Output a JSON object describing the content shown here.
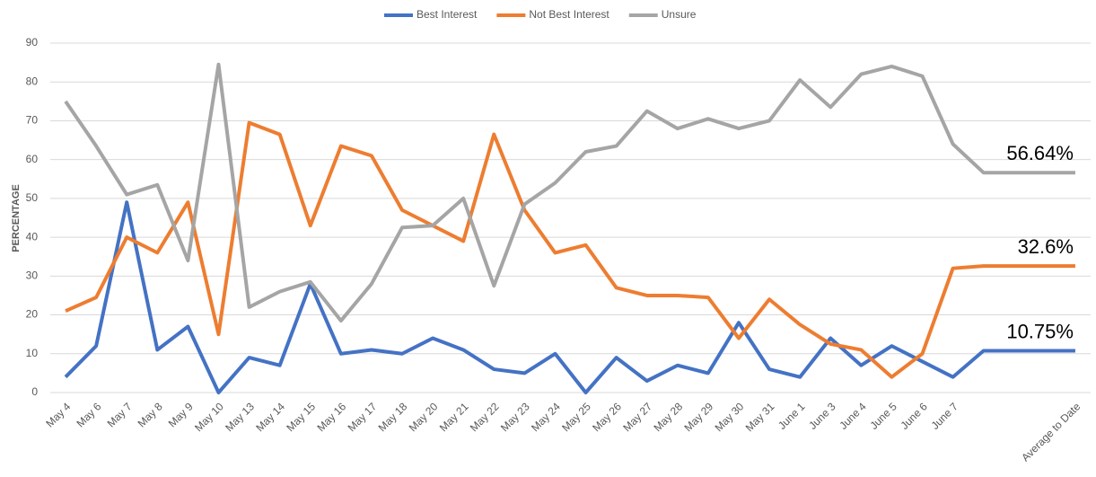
{
  "chart_data": {
    "type": "line",
    "y_label": "PERCENTAGE",
    "categories": [
      "May 4",
      "May 6",
      "May 7",
      "May 8",
      "May 9",
      "May 10",
      "May 13",
      "May 14",
      "May 15",
      "May 16",
      "May 17",
      "May 18",
      "May 20",
      "May 21",
      "May 22",
      "May 23",
      "May 24",
      "May 25",
      "May 26",
      "May 27",
      "May 28",
      "May 29",
      "May 30",
      "May 31",
      "June 1",
      "June 3",
      "June 4",
      "June 5",
      "June 6",
      "June 7",
      null,
      null,
      null,
      "Average to Date"
    ],
    "series": [
      {
        "name": "Best Interest",
        "color": "#4472c4",
        "values": [
          4,
          12,
          49,
          11,
          17,
          0,
          9,
          7,
          28,
          10,
          11,
          10,
          14,
          11,
          6,
          5,
          10,
          0,
          9,
          3,
          7,
          5,
          18,
          6,
          4,
          14,
          7,
          12,
          8,
          4,
          10.75,
          10.75,
          10.75,
          10.75
        ],
        "value_labels": [
          null,
          null,
          null,
          null,
          null,
          null,
          null,
          null,
          null,
          null,
          null,
          null,
          null,
          null,
          null,
          null,
          null,
          null,
          null,
          null,
          null,
          null,
          null,
          null,
          null,
          null,
          null,
          null,
          null,
          null,
          null,
          null,
          null,
          "10.75%"
        ]
      },
      {
        "name": "Not Best Interest",
        "color": "#ed7d31",
        "values": [
          21,
          24.5,
          40,
          36,
          49,
          15,
          69.5,
          66.5,
          43,
          63.5,
          61,
          47,
          43,
          39,
          66.5,
          47,
          36,
          38,
          27,
          25,
          25,
          24.5,
          14,
          24,
          17.5,
          12.5,
          11,
          4,
          10,
          32,
          32.6,
          32.6,
          32.6,
          32.6
        ],
        "value_labels": [
          null,
          null,
          null,
          null,
          null,
          null,
          null,
          null,
          null,
          null,
          null,
          null,
          null,
          null,
          null,
          null,
          null,
          null,
          null,
          null,
          null,
          null,
          null,
          null,
          null,
          null,
          null,
          null,
          null,
          null,
          null,
          null,
          null,
          "32.6%"
        ]
      },
      {
        "name": "Unsure",
        "color": "#a5a5a5",
        "values": [
          75,
          63.5,
          51,
          53.5,
          34,
          84.5,
          22,
          26,
          28.5,
          18.5,
          28,
          42.5,
          43,
          50,
          27.5,
          48.5,
          54,
          62,
          63.5,
          72.5,
          68,
          70.5,
          68,
          70,
          80.5,
          73.5,
          82,
          84,
          81.5,
          64,
          56.64,
          56.64,
          56.64,
          56.64
        ],
        "value_labels": [
          null,
          null,
          null,
          null,
          null,
          null,
          null,
          null,
          null,
          null,
          null,
          null,
          null,
          null,
          null,
          null,
          null,
          null,
          null,
          null,
          null,
          null,
          null,
          null,
          null,
          null,
          null,
          null,
          null,
          null,
          null,
          null,
          null,
          "56.64%"
        ]
      }
    ],
    "ylim": [
      0,
      90
    ],
    "yticks": [
      0,
      10,
      20,
      30,
      40,
      50,
      60,
      70,
      80,
      90
    ],
    "grid": true,
    "legend": "top"
  }
}
